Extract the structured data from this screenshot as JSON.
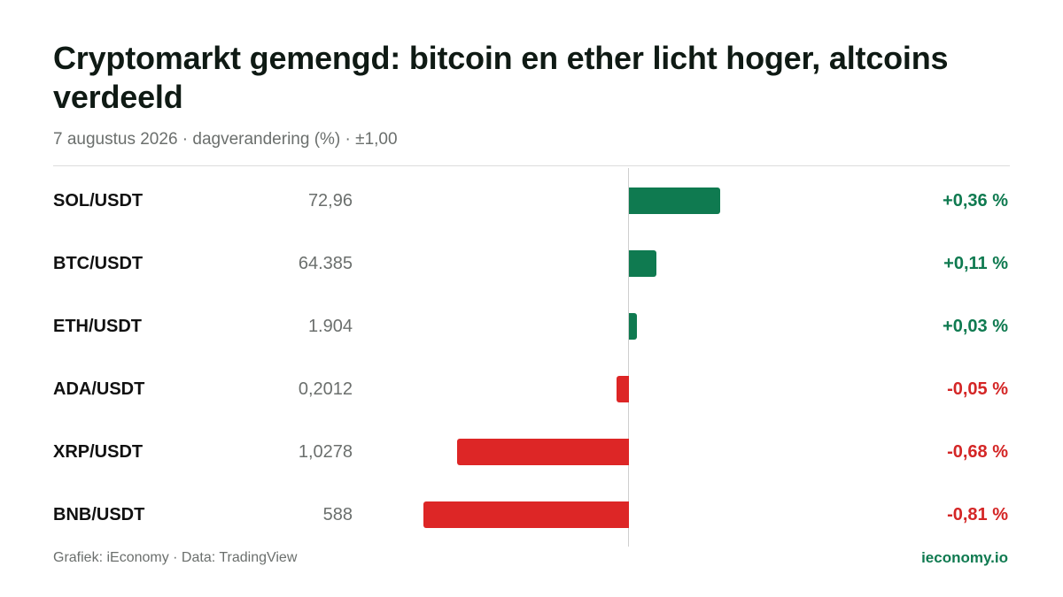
{
  "header": {
    "title": "Cryptomarkt gemengd: bitcoin en ether licht hoger, altcoins verdeeld",
    "subtitle": "7 augustus 2026 · dagverandering (%) · ±1,00"
  },
  "footer": {
    "credit": "Grafiek: iEconomy · Data: TradingView",
    "brand": "ieconomy.io"
  },
  "colors": {
    "positive": "#0f7a50",
    "negative": "#dd2626"
  },
  "chart_data": {
    "type": "bar",
    "orientation": "horizontal",
    "xlim": [
      -1.0,
      1.0
    ],
    "grid": false,
    "categories": [
      "SOL/USDT",
      "BTC/USDT",
      "ETH/USDT",
      "ADA/USDT",
      "XRP/USDT",
      "BNB/USDT"
    ],
    "prices": [
      "72,96",
      "64.385",
      "1.904",
      "0,2012",
      "1,0278",
      "588"
    ],
    "values": [
      0.36,
      0.11,
      0.03,
      -0.05,
      -0.68,
      -0.81
    ],
    "value_labels": [
      "+0,36 %",
      "+0,11 %",
      "+0,03 %",
      "-0,05 %",
      "-0,68 %",
      "-0,81 %"
    ]
  }
}
